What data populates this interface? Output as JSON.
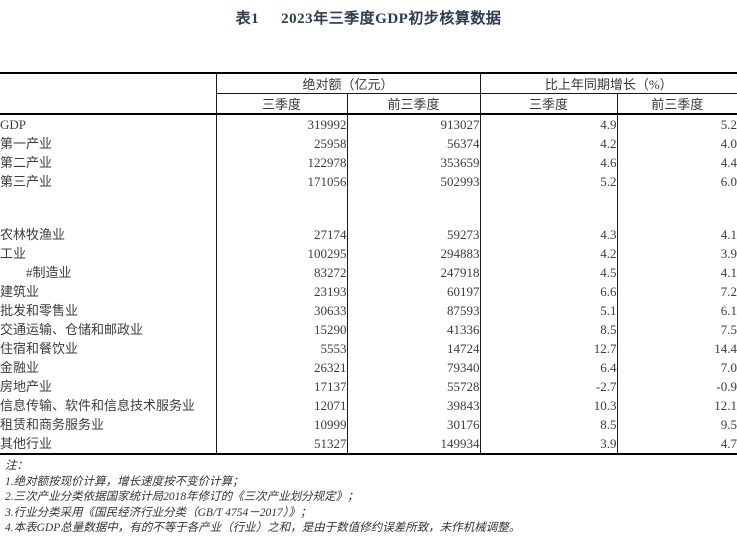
{
  "title": {
    "label": "表1",
    "text": "2023年三季度GDP初步核算数据"
  },
  "table": {
    "group_headers": {
      "absolute": "绝对额（亿元）",
      "growth": "比上年同期增长（%）"
    },
    "sub_headers": [
      "三季度",
      "前三季度",
      "三季度",
      "前三季度"
    ],
    "rows": [
      {
        "label": "GDP",
        "q3_abs": "319992",
        "ytd_abs": "913027",
        "q3_growth": "4.9",
        "ytd_growth": "5.2"
      },
      {
        "label": "第一产业",
        "q3_abs": "25958",
        "ytd_abs": "56374",
        "q3_growth": "4.2",
        "ytd_growth": "4.0"
      },
      {
        "label": "第二产业",
        "q3_abs": "122978",
        "ytd_abs": "353659",
        "q3_growth": "4.6",
        "ytd_growth": "4.4"
      },
      {
        "label": "第三产业",
        "q3_abs": "171056",
        "ytd_abs": "502993",
        "q3_growth": "5.2",
        "ytd_growth": "6.0"
      },
      {
        "spacer": true
      },
      {
        "label": "农林牧渔业",
        "q3_abs": "27174",
        "ytd_abs": "59273",
        "q3_growth": "4.3",
        "ytd_growth": "4.1"
      },
      {
        "label": "工业",
        "q3_abs": "100295",
        "ytd_abs": "294883",
        "q3_growth": "4.2",
        "ytd_growth": "3.9"
      },
      {
        "label": "#制造业",
        "indent": true,
        "q3_abs": "83272",
        "ytd_abs": "247918",
        "q3_growth": "4.5",
        "ytd_growth": "4.1"
      },
      {
        "label": "建筑业",
        "q3_abs": "23193",
        "ytd_abs": "60197",
        "q3_growth": "6.6",
        "ytd_growth": "7.2"
      },
      {
        "label": "批发和零售业",
        "q3_abs": "30633",
        "ytd_abs": "87593",
        "q3_growth": "5.1",
        "ytd_growth": "6.1"
      },
      {
        "label": "交通运输、仓储和邮政业",
        "q3_abs": "15290",
        "ytd_abs": "41336",
        "q3_growth": "8.5",
        "ytd_growth": "7.5"
      },
      {
        "label": "住宿和餐饮业",
        "q3_abs": "5553",
        "ytd_abs": "14724",
        "q3_growth": "12.7",
        "ytd_growth": "14.4"
      },
      {
        "label": "金融业",
        "q3_abs": "26321",
        "ytd_abs": "79340",
        "q3_growth": "6.4",
        "ytd_growth": "7.0"
      },
      {
        "label": "房地产业",
        "q3_abs": "17137",
        "ytd_abs": "55728",
        "q3_growth": "-2.7",
        "ytd_growth": "-0.9"
      },
      {
        "label": "信息传输、软件和信息技术服务业",
        "q3_abs": "12071",
        "ytd_abs": "39843",
        "q3_growth": "10.3",
        "ytd_growth": "12.1"
      },
      {
        "label": "租赁和商务服务业",
        "q3_abs": "10999",
        "ytd_abs": "30176",
        "q3_growth": "8.5",
        "ytd_growth": "9.5"
      },
      {
        "label": "其他行业",
        "q3_abs": "51327",
        "ytd_abs": "149934",
        "q3_growth": "3.9",
        "ytd_growth": "4.7"
      }
    ]
  },
  "notes": {
    "heading": "注：",
    "items": [
      "1.绝对额按现价计算，增长速度按不变价计算；",
      "2.三次产业分类依据国家统计局2018年修订的《三次产业划分规定》；",
      "3.行业分类采用《国民经济行业分类（GB/T 4754－2017）》；",
      "4.本表GDP总量数据中，有的不等于各产业（行业）之和，是由于数值修约误差所致，未作机械调整。"
    ]
  }
}
